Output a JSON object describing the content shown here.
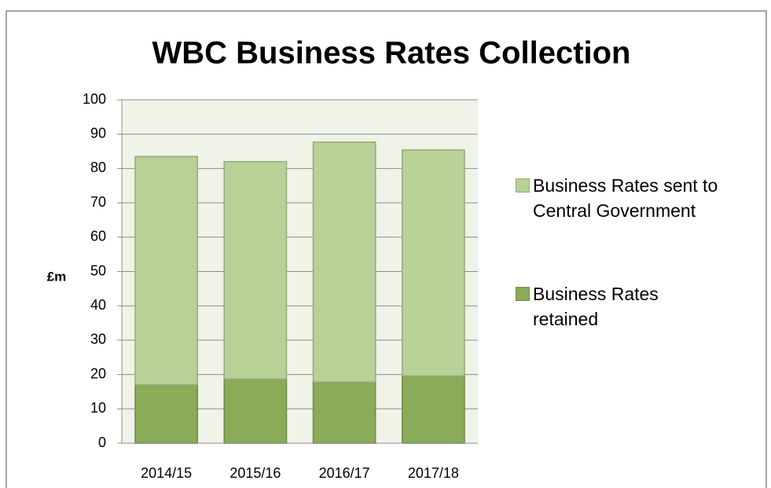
{
  "chart_data": {
    "type": "stacked_bar",
    "title": "WBC Business Rates Collection",
    "y_label": "£m",
    "categories": [
      "2014/15",
      "2015/16",
      "2016/17",
      "2017/18"
    ],
    "series": [
      {
        "name": "Business Rates retained",
        "color": "#8aab57",
        "values": [
          17,
          18.7,
          17.8,
          19.6
        ]
      },
      {
        "name": "Business Rates sent to Central Government",
        "color": "#b8d197",
        "values": [
          66.5,
          63.3,
          69.9,
          65.8
        ]
      }
    ],
    "ylim": [
      0,
      100
    ],
    "yticks": [
      0,
      10,
      20,
      30,
      40,
      50,
      60,
      70,
      80,
      90,
      100
    ],
    "grid": true,
    "legend": "right"
  }
}
